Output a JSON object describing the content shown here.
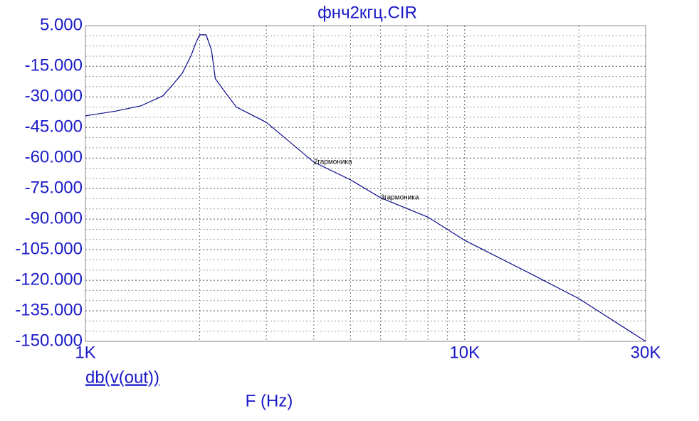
{
  "chart_data": {
    "type": "line",
    "title": "фнч2кгц.CIR",
    "x_label": "F (Hz)",
    "log_x": true,
    "x": [
      1000,
      1200,
      1400,
      1600,
      1700,
      1800,
      1900,
      1950,
      2000,
      2080,
      2150,
      2200,
      2300,
      2500,
      3000,
      4000,
      5000,
      6000,
      8000,
      10000,
      15000,
      20000,
      30000
    ],
    "series": [
      {
        "name": "db(v(out))",
        "color": "#0a0a8c",
        "values": [
          -39.3,
          -37,
          -34.4,
          -29.5,
          -24,
          -18.4,
          -9.7,
          -4,
          0.5,
          0.5,
          -7,
          -21,
          -26,
          -35,
          -42.5,
          -62,
          -70.7,
          -79.5,
          -89,
          -100.4,
          -117,
          -129,
          -150
        ]
      }
    ],
    "xlim": [
      1000,
      30000
    ],
    "xticks": [
      {
        "value": 1000,
        "label": "1K"
      },
      {
        "value": 10000,
        "label": "10K"
      },
      {
        "value": 30000,
        "label": "30K"
      }
    ],
    "xgrid": [
      2000,
      3000,
      4000,
      5000,
      6000,
      7000,
      8000,
      9000,
      20000
    ],
    "ylim": [
      -150,
      5
    ],
    "yticks": [
      {
        "value": 5,
        "label": "5.000"
      },
      {
        "value": -15,
        "label": "-15.000"
      },
      {
        "value": -30,
        "label": "-30.000"
      },
      {
        "value": -45,
        "label": "-45.000"
      },
      {
        "value": -60,
        "label": "-60.000"
      },
      {
        "value": -75,
        "label": "-75.000"
      },
      {
        "value": -90,
        "label": "-90.000"
      },
      {
        "value": -105,
        "label": "-105.000"
      },
      {
        "value": -120,
        "label": "-120.000"
      },
      {
        "value": -135,
        "label": "-135.000"
      },
      {
        "value": -150,
        "label": "-150.000"
      }
    ],
    "ygrid": [
      0,
      -5,
      -10,
      -20,
      -25,
      -35,
      -40,
      -50,
      -55,
      -65,
      -70,
      -80,
      -85,
      -95,
      -100,
      -110,
      -115,
      -125,
      -130,
      -140,
      -145
    ],
    "grid": true,
    "annotations": [
      {
        "text": "2гармоника",
        "x": 4000,
        "y": -62
      },
      {
        "text": "3гармоника",
        "x": 6000,
        "y": -79.5
      }
    ]
  }
}
